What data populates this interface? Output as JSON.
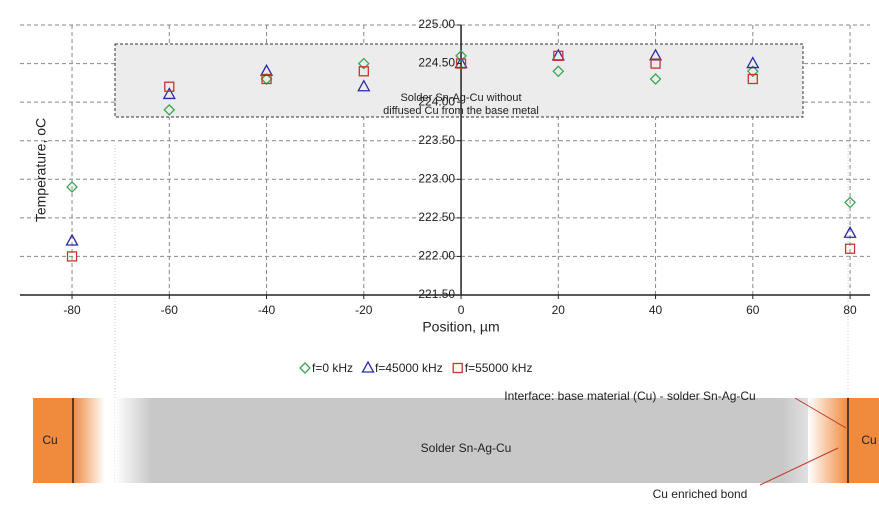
{
  "chart_data": {
    "type": "scatter",
    "x_label": "Position, µm",
    "y_label": "Temperature, oC",
    "annotation": [
      "Solder Sn-Ag-Cu without",
      "diffused Cu from the base metal"
    ],
    "xlim": [
      -90.7,
      84.1
    ],
    "ylim": [
      221.5,
      225.0
    ],
    "xticks": [
      -80,
      -60,
      -40,
      -20,
      0,
      20,
      40,
      60,
      80
    ],
    "yticks": [
      {
        "value": 221.5,
        "label": "221.50"
      },
      {
        "value": 222,
        "label": "222.00"
      },
      {
        "value": 222.5,
        "label": "222.50"
      },
      {
        "value": 223,
        "label": "223.00"
      },
      {
        "value": 223.5,
        "label": "223.50"
      },
      {
        "value": 224,
        "label": "224.00"
      },
      {
        "value": 224.5,
        "label": "224.50"
      },
      {
        "value": 225,
        "label": "225.00"
      }
    ],
    "grid": true,
    "x": [
      -80,
      -60,
      -40,
      -20,
      0,
      20,
      40,
      60,
      80
    ],
    "series": [
      {
        "name": "f=0 kHz",
        "color": "#3aa655",
        "marker": "diamond",
        "values": [
          222.9,
          223.9,
          224.3,
          224.5,
          224.6,
          224.4,
          224.3,
          224.4,
          222.7
        ]
      },
      {
        "name": "f=45000 kHz",
        "color": "#2b2ba6",
        "marker": "triangle",
        "values": [
          222.2,
          224.1,
          224.4,
          224.2,
          224.5,
          224.6,
          224.6,
          224.5,
          222.3
        ]
      },
      {
        "name": "f=55000 kHz",
        "color": "#c0392b",
        "marker": "square",
        "values": [
          222.0,
          224.2,
          224.3,
          224.4,
          224.5,
          224.6,
          224.5,
          224.3,
          222.1
        ]
      }
    ]
  },
  "diagram": {
    "left_label": "Cu",
    "right_label": "Cu",
    "center_label": "Solder Sn-Ag-Cu",
    "interface_label": "Interface: base material (Cu) - solder Sn-Ag-Cu",
    "bond_label": "Cu enriched bond"
  }
}
